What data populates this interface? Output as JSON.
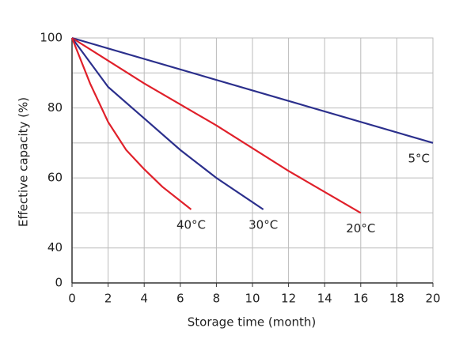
{
  "chart_data": {
    "type": "line",
    "xlabel": "Storage time (month)",
    "ylabel": "Effective capacity (%)",
    "xlim": [
      0,
      20
    ],
    "xticks": [
      0,
      2,
      4,
      6,
      8,
      10,
      12,
      14,
      16,
      18,
      20
    ],
    "ylim": [
      30,
      100
    ],
    "yticks": [
      40,
      60,
      80,
      100
    ],
    "ygrid": [
      40,
      50,
      60,
      70,
      80,
      90,
      100
    ],
    "ybreak": {
      "label": "0"
    },
    "grid": true,
    "series": [
      {
        "name": "5°C",
        "color": "#2b2f8c",
        "x": [
          0,
          20
        ],
        "values": [
          100,
          70
        ]
      },
      {
        "name": "20°C",
        "color": "#e0202a",
        "x": [
          0,
          4,
          8,
          12,
          16
        ],
        "values": [
          100,
          87,
          75,
          62,
          50
        ]
      },
      {
        "name": "30°C",
        "color": "#2b2f8c",
        "x": [
          0,
          2,
          4,
          6,
          8,
          10.6
        ],
        "values": [
          100,
          86,
          77,
          68,
          60,
          51
        ]
      },
      {
        "name": "40°C",
        "color": "#e0202a",
        "x": [
          0,
          1,
          2,
          3,
          4,
          5,
          6.6
        ],
        "values": [
          100,
          87,
          76,
          68,
          62.5,
          57.5,
          51
        ]
      }
    ]
  }
}
